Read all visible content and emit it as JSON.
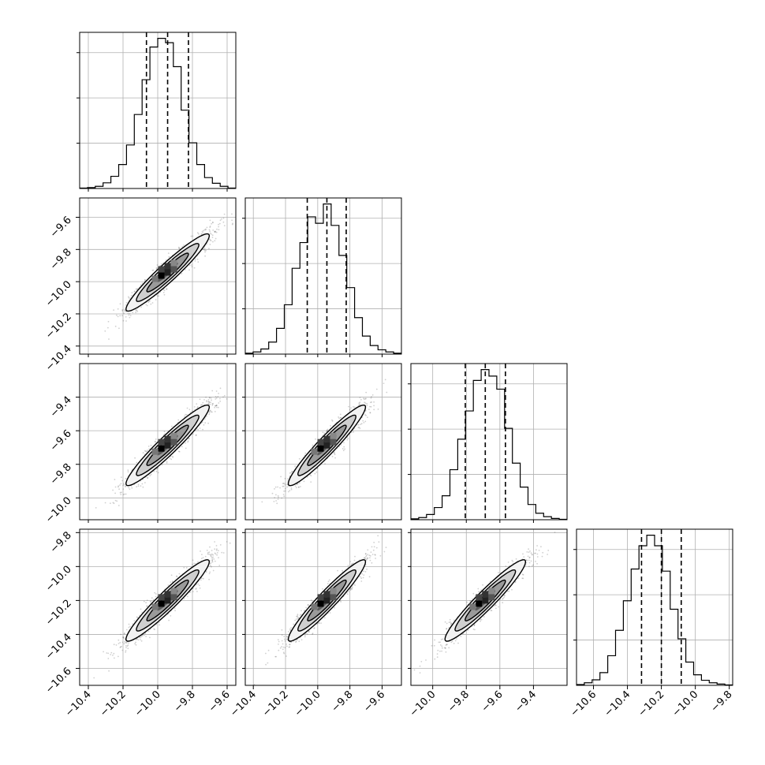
{
  "chart_data": {
    "type": "corner",
    "n_params": 4,
    "quantiles": [
      0.16,
      0.5,
      0.84
    ],
    "grid": true,
    "colors": {
      "frame": "#000000",
      "grid": "#b0b0b0",
      "scatter": "#555555",
      "contour_line": "#000000"
    },
    "ranges": [
      [
        -10.45,
        -9.55
      ],
      [
        -10.45,
        -9.48
      ],
      [
        -10.13,
        -9.2
      ],
      [
        -10.7,
        -9.78
      ]
    ],
    "ticks": [
      [
        -10.4,
        -10.2,
        -10.0,
        -9.8,
        -9.6
      ],
      [
        -10.4,
        -10.2,
        -10.0,
        -9.8,
        -9.6
      ],
      [
        -10.0,
        -9.8,
        -9.6,
        -9.4
      ],
      [
        -10.6,
        -10.4,
        -10.2,
        -10.0,
        -9.8
      ]
    ],
    "tick_labels": [
      [
        "−10.4",
        "−10.2",
        "−10.0",
        "−9.8",
        "−9.6"
      ],
      [
        "−10.4",
        "−10.2",
        "−10.0",
        "−9.8",
        "−9.6"
      ],
      [
        "−10.0",
        "−9.8",
        "−9.6",
        "−9.4"
      ],
      [
        "−10.6",
        "−10.4",
        "−10.2",
        "−10.0",
        "−9.8"
      ]
    ],
    "histograms": [
      {
        "param": 0,
        "bins": [
          -10.45,
          -10.405,
          -10.36,
          -10.315,
          -10.27,
          -10.225,
          -10.18,
          -10.135,
          -10.09,
          -10.045,
          -10.0,
          -9.955,
          -9.91,
          -9.865,
          -9.82,
          -9.775,
          -9.73,
          -9.685,
          -9.64,
          -9.595,
          -9.55
        ],
        "counts": [
          1,
          2,
          5,
          13,
          28,
          55,
          100,
          170,
          250,
          325,
          345,
          335,
          280,
          180,
          105,
          55,
          25,
          12,
          5,
          1
        ],
        "q16": -10.065,
        "q50": -9.943,
        "q84": -9.823
      },
      {
        "param": 1,
        "bins": [
          -10.45,
          -10.4015,
          -10.353,
          -10.3045,
          -10.256,
          -10.2075,
          -10.159,
          -10.1105,
          -10.062,
          -10.0135,
          -9.965,
          -9.9165,
          -9.868,
          -9.8195,
          -9.771,
          -9.7225,
          -9.674,
          -9.6255,
          -9.577,
          -9.5285,
          -9.48
        ],
        "counts": [
          2,
          5,
          12,
          28,
          60,
          115,
          200,
          260,
          320,
          305,
          350,
          300,
          230,
          155,
          85,
          42,
          20,
          10,
          5,
          2
        ],
        "q16": -10.065,
        "q50": -9.943,
        "q84": -9.823
      },
      {
        "param": 2,
        "bins": [
          -10.13,
          -10.0835,
          -10.037,
          -9.9905,
          -9.944,
          -9.8975,
          -9.851,
          -9.8045,
          -9.758,
          -9.7115,
          -9.665,
          -9.6185,
          -9.572,
          -9.5255,
          -9.479,
          -9.4325,
          -9.386,
          -9.3395,
          -9.293,
          -9.2465,
          -9.2
        ],
        "counts": [
          2,
          5,
          12,
          28,
          55,
          115,
          185,
          250,
          320,
          345,
          330,
          300,
          210,
          130,
          75,
          35,
          15,
          7,
          3,
          1
        ],
        "q16": -9.806,
        "q50": -9.687,
        "q84": -9.567
      },
      {
        "param": 3,
        "bins": [
          -10.7,
          -10.654,
          -10.608,
          -10.562,
          -10.516,
          -10.47,
          -10.424,
          -10.378,
          -10.332,
          -10.286,
          -10.24,
          -10.194,
          -10.148,
          -10.102,
          -10.056,
          -10.01,
          -9.964,
          -9.918,
          -9.872,
          -9.826,
          -9.78
        ],
        "counts": [
          2,
          6,
          13,
          30,
          70,
          130,
          200,
          275,
          330,
          355,
          330,
          270,
          180,
          110,
          55,
          25,
          12,
          6,
          3,
          1
        ],
        "q16": -10.317,
        "q50": -10.2,
        "q84": -10.083
      }
    ],
    "pairs": [
      {
        "x": 0,
        "y": 1,
        "center": [
          -9.943,
          -9.943
        ],
        "sigma": [
          0.12,
          0.12
        ],
        "rho": 0.95
      },
      {
        "x": 0,
        "y": 2,
        "center": [
          -9.943,
          -9.687
        ],
        "sigma": [
          0.12,
          0.12
        ],
        "rho": 0.95
      },
      {
        "x": 1,
        "y": 2,
        "center": [
          -9.943,
          -9.687
        ],
        "sigma": [
          0.12,
          0.12
        ],
        "rho": 0.95
      },
      {
        "x": 0,
        "y": 3,
        "center": [
          -9.943,
          -10.2
        ],
        "sigma": [
          0.12,
          0.12
        ],
        "rho": 0.95
      },
      {
        "x": 1,
        "y": 3,
        "center": [
          -9.943,
          -10.2
        ],
        "sigma": [
          0.12,
          0.12
        ],
        "rho": 0.95
      },
      {
        "x": 2,
        "y": 3,
        "center": [
          -9.687,
          -10.2
        ],
        "sigma": [
          0.12,
          0.12
        ],
        "rho": 0.95
      }
    ],
    "contour_levels_sigma": [
      0.5,
      1.0,
      1.5,
      2.0
    ]
  }
}
